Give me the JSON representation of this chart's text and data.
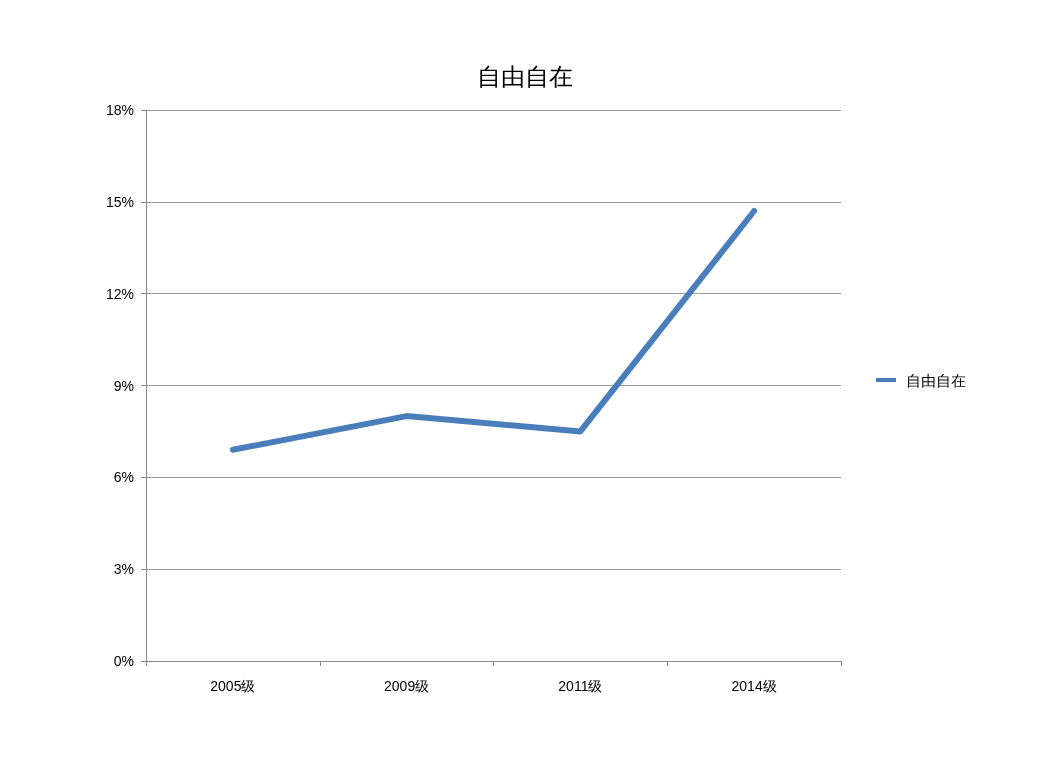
{
  "chart_data": {
    "type": "line",
    "title": "自由自在",
    "categories": [
      "2005级",
      "2009级",
      "2011级",
      "2014级"
    ],
    "series": [
      {
        "name": "自由自在",
        "color": "#4a7ebb",
        "values": [
          6.9,
          8.0,
          7.5,
          14.7
        ]
      }
    ],
    "ylim": [
      0,
      18
    ],
    "yticks": [
      {
        "value": 0,
        "label": "0%"
      },
      {
        "value": 3,
        "label": "3%"
      },
      {
        "value": 6,
        "label": "6%"
      },
      {
        "value": 9,
        "label": "9%"
      },
      {
        "value": 12,
        "label": "12%"
      },
      {
        "value": 15,
        "label": "15%"
      },
      {
        "value": 18,
        "label": "18%"
      }
    ],
    "grid": "y",
    "legend": "right",
    "marker": "none",
    "line_style": "solid"
  }
}
